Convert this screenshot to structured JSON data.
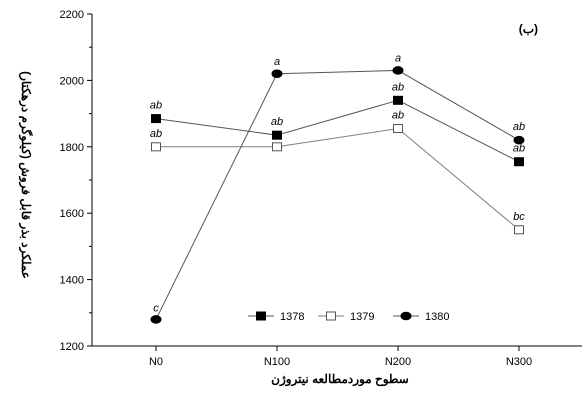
{
  "chart_data": {
    "type": "line",
    "panel_label": "(ب)",
    "xlabel": "سطوح موردمطالعه نیتروژن",
    "ylabel": "عملکرد بذر قابل فروش (کیلوگرم درهکتار)",
    "categories": [
      "N0",
      "N100",
      "N200",
      "N300"
    ],
    "ylim": [
      1200,
      2200
    ],
    "yticks": [
      1200,
      1400,
      1600,
      1800,
      2000,
      2200
    ],
    "grid": false,
    "legend_position": "bottom-center",
    "series": [
      {
        "name": "1378",
        "marker": "filled-square",
        "color": "#000000",
        "line_color": "#555555",
        "values": [
          1885,
          1835,
          1940,
          1755
        ],
        "labels": [
          "ab",
          "ab",
          "ab",
          "ab"
        ]
      },
      {
        "name": "1379",
        "marker": "open-square",
        "color": "#000000",
        "line_color": "#7f7f7f",
        "values": [
          1800,
          1800,
          1855,
          1550
        ],
        "labels": [
          "ab",
          "",
          "ab",
          "bc"
        ]
      },
      {
        "name": "1380",
        "marker": "filled-circle",
        "color": "#000000",
        "line_color": "#555555",
        "values": [
          1280,
          2020,
          2030,
          1820
        ],
        "labels": [
          "c",
          "a",
          "a",
          "ab"
        ]
      }
    ]
  }
}
